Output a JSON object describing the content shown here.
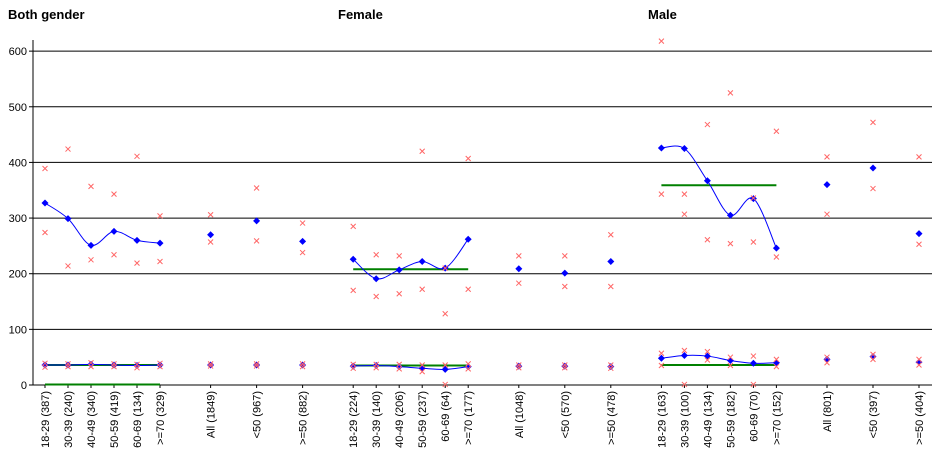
{
  "chart_data": {
    "type": "line",
    "panel_titles": [
      "Both gender",
      "Female",
      "Male"
    ],
    "ylim": [
      0,
      620
    ],
    "yticks": [
      0,
      100,
      200,
      300,
      400,
      500,
      600
    ],
    "grid": true,
    "categories": [
      "18-29 (387)",
      "30-39 (240)",
      "40-49 (340)",
      "50-59 (419)",
      "60-69 (134)",
      ">=70 (329)",
      "All (1849)",
      "<50 (967)",
      ">=50 (882)",
      "18-29 (224)",
      "30-39 (140)",
      "40-49 (206)",
      "50-59 (237)",
      "60-69 (64)",
      ">=70 (177)",
      "All (1048)",
      "<50 (570)",
      ">=50 (478)",
      "18-29 (163)",
      "30-39 (100)",
      "40-49 (134)",
      "50-59 (182)",
      "60-69 (70)",
      ">=70 (152)",
      "All (801)",
      "<50 (397)",
      ">=50 (404)"
    ],
    "x_positions": [
      0,
      1,
      2,
      3,
      4,
      5,
      7.2,
      9.2,
      11.2,
      13.4,
      14.4,
      15.4,
      16.4,
      17.4,
      18.4,
      20.6,
      22.6,
      24.6,
      26.8,
      27.8,
      28.8,
      29.8,
      30.8,
      31.8,
      34,
      36,
      38
    ],
    "line_groups": [
      [
        0,
        5
      ],
      [
        9,
        14
      ],
      [
        18,
        23
      ]
    ],
    "series": [
      {
        "kind": "upper-mean",
        "color": "#0000ff",
        "values": [
          327,
          299,
          251,
          276,
          260,
          255,
          270,
          295,
          258,
          226,
          191,
          207,
          222,
          210,
          262,
          209,
          201,
          222,
          426,
          425,
          367,
          305,
          335,
          246,
          360,
          390,
          272
        ]
      },
      {
        "kind": "upper-ci-high",
        "color": "#ff6666",
        "values": [
          389,
          424,
          357,
          343,
          411,
          304,
          306,
          354,
          291,
          285,
          234,
          232,
          420,
          210,
          407,
          232,
          232,
          270,
          618,
          307,
          468,
          525,
          336,
          456,
          410,
          472,
          410
        ]
      },
      {
        "kind": "upper-ci-low",
        "color": "#ff6666",
        "values": [
          274,
          214,
          225,
          234,
          219,
          222,
          257,
          259,
          238,
          170,
          159,
          164,
          172,
          128,
          172,
          183,
          177,
          177,
          343,
          343,
          261,
          254,
          257,
          230,
          307,
          353,
          253
        ]
      },
      {
        "kind": "lower-mean",
        "color": "#0000ff",
        "values": [
          36,
          36,
          37,
          36,
          35,
          36,
          36,
          36,
          36,
          34,
          35,
          33,
          30,
          28,
          33,
          34,
          34,
          33,
          48,
          53,
          52,
          44,
          39,
          40,
          46,
          51,
          41
        ]
      },
      {
        "kind": "lower-ci-high",
        "color": "#ff6666",
        "values": [
          39,
          38,
          40,
          38,
          37,
          39,
          38,
          38,
          38,
          37,
          37,
          37,
          36,
          36,
          38,
          36,
          36,
          36,
          57,
          62,
          60,
          50,
          52,
          46,
          50,
          55,
          46
        ]
      },
      {
        "kind": "lower-ci-low",
        "color": "#ff6666",
        "values": [
          32,
          33,
          33,
          33,
          31,
          33,
          34,
          34,
          33,
          30,
          31,
          29,
          24,
          1,
          29,
          31,
          31,
          30,
          35,
          1,
          45,
          35,
          1,
          33,
          40,
          46,
          36
        ]
      }
    ],
    "reference_lines": [
      {
        "color": "#008000",
        "from": 0,
        "to": 5,
        "value": 36
      },
      {
        "color": "#008000",
        "from": 0,
        "to": 5,
        "value": 1
      },
      {
        "color": "#008000",
        "from": 9,
        "to": 14,
        "value": 208
      },
      {
        "color": "#008000",
        "from": 9,
        "to": 14,
        "value": 35
      },
      {
        "color": "#008000",
        "from": 18,
        "to": 23,
        "value": 359
      },
      {
        "color": "#008000",
        "from": 18,
        "to": 23,
        "value": 36
      }
    ]
  }
}
